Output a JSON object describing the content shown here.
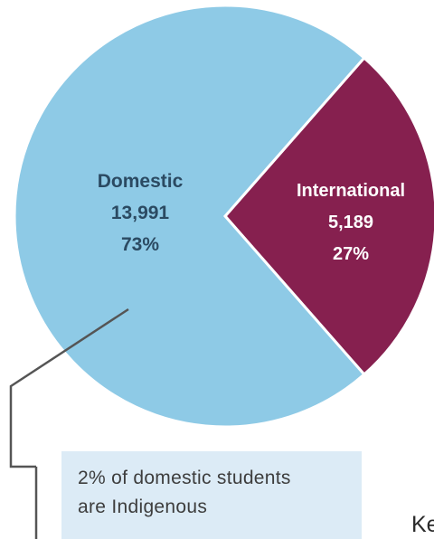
{
  "chart_data": {
    "type": "pie",
    "slices": [
      {
        "name": "Domestic",
        "value": 13991,
        "value_label": "13,991",
        "percent": 73,
        "percent_label": "73%",
        "color": "#8ecae6"
      },
      {
        "name": "International",
        "value": 5189,
        "value_label": "5,189",
        "percent": 27,
        "percent_label": "27%",
        "color": "#86204f"
      }
    ],
    "annotation": {
      "lines": [
        "2% of domestic students",
        "are Indigenous"
      ]
    }
  },
  "colors": {
    "domestic_text": "#2b4a62",
    "international_text": "#ffffff",
    "leader_line": "#555555",
    "callout_background": "#dcebf6"
  },
  "partial_text": "Ke"
}
